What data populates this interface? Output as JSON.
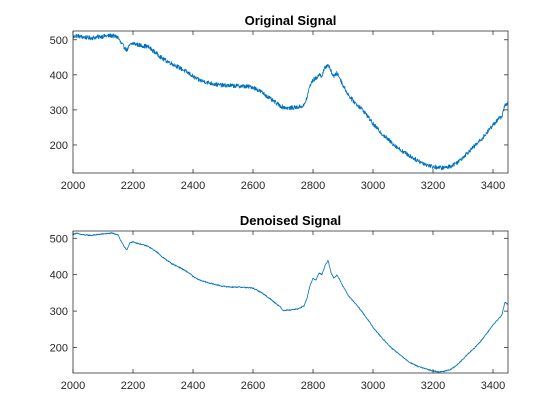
{
  "chart_data": [
    {
      "type": "line",
      "title": "Original Signal",
      "xlabel": "",
      "ylabel": "",
      "xlim": [
        2000,
        3450
      ],
      "ylim": [
        120,
        525
      ],
      "grid": false,
      "xticks": [
        2000,
        2200,
        2400,
        2600,
        2800,
        3000,
        3200,
        3400
      ],
      "yticks": [
        200,
        300,
        400,
        500
      ],
      "color": "#0072BD",
      "noise_amplitude": 6,
      "series": [
        {
          "x": [
            2000,
            2010,
            2030,
            2060,
            2100,
            2130,
            2150,
            2160,
            2170,
            2180,
            2190,
            2200,
            2220,
            2250,
            2280,
            2300,
            2330,
            2360,
            2390,
            2400,
            2420,
            2450,
            2480,
            2500,
            2530,
            2560,
            2600,
            2630,
            2660,
            2690,
            2700,
            2720,
            2750,
            2770,
            2780,
            2790,
            2800,
            2810,
            2820,
            2830,
            2840,
            2850,
            2860,
            2870,
            2880,
            2890,
            2900,
            2920,
            2940,
            2960,
            2980,
            3000,
            3030,
            3060,
            3090,
            3120,
            3150,
            3180,
            3200,
            3220,
            3240,
            3260,
            3280,
            3300,
            3320,
            3340,
            3360,
            3380,
            3400,
            3420,
            3430,
            3440,
            3450
          ],
          "values": [
            507,
            512,
            508,
            505,
            510,
            512,
            507,
            490,
            480,
            470,
            485,
            490,
            485,
            480,
            460,
            445,
            432,
            418,
            402,
            395,
            385,
            378,
            372,
            370,
            369,
            368,
            365,
            350,
            330,
            312,
            308,
            305,
            308,
            312,
            335,
            370,
            385,
            390,
            400,
            398,
            420,
            430,
            410,
            395,
            405,
            390,
            370,
            340,
            320,
            305,
            285,
            260,
            232,
            208,
            187,
            170,
            155,
            143,
            138,
            135,
            135,
            140,
            150,
            165,
            182,
            198,
            215,
            235,
            258,
            275,
            282,
            315,
            320
          ]
        }
      ]
    },
    {
      "type": "line",
      "title": "Denoised Signal",
      "xlabel": "",
      "ylabel": "",
      "xlim": [
        2000,
        3450
      ],
      "ylim": [
        130,
        520
      ],
      "grid": false,
      "xticks": [
        2000,
        2200,
        2400,
        2600,
        2800,
        3000,
        3200,
        3400
      ],
      "yticks": [
        200,
        300,
        400,
        500
      ],
      "color": "#0072BD",
      "noise_amplitude": 1.5,
      "series": [
        {
          "x": [
            2000,
            2010,
            2030,
            2060,
            2100,
            2130,
            2150,
            2160,
            2170,
            2180,
            2190,
            2200,
            2220,
            2250,
            2280,
            2300,
            2330,
            2360,
            2390,
            2400,
            2420,
            2450,
            2480,
            2500,
            2530,
            2560,
            2600,
            2630,
            2660,
            2690,
            2700,
            2720,
            2750,
            2770,
            2780,
            2790,
            2800,
            2810,
            2820,
            2830,
            2840,
            2850,
            2860,
            2870,
            2880,
            2890,
            2900,
            2920,
            2940,
            2960,
            2980,
            3000,
            3030,
            3060,
            3090,
            3120,
            3150,
            3180,
            3200,
            3220,
            3240,
            3260,
            3280,
            3300,
            3320,
            3340,
            3360,
            3380,
            3400,
            3420,
            3430,
            3440,
            3450
          ],
          "values": [
            510,
            514,
            510,
            508,
            512,
            514,
            510,
            492,
            478,
            468,
            488,
            490,
            485,
            478,
            462,
            447,
            430,
            418,
            403,
            395,
            386,
            378,
            372,
            368,
            366,
            366,
            363,
            350,
            332,
            312,
            302,
            303,
            306,
            314,
            335,
            370,
            390,
            385,
            405,
            400,
            425,
            440,
            405,
            390,
            400,
            385,
            368,
            340,
            322,
            302,
            280,
            256,
            226,
            200,
            180,
            160,
            148,
            140,
            136,
            133,
            135,
            140,
            152,
            168,
            185,
            200,
            218,
            240,
            262,
            280,
            290,
            325,
            318
          ]
        }
      ]
    }
  ]
}
